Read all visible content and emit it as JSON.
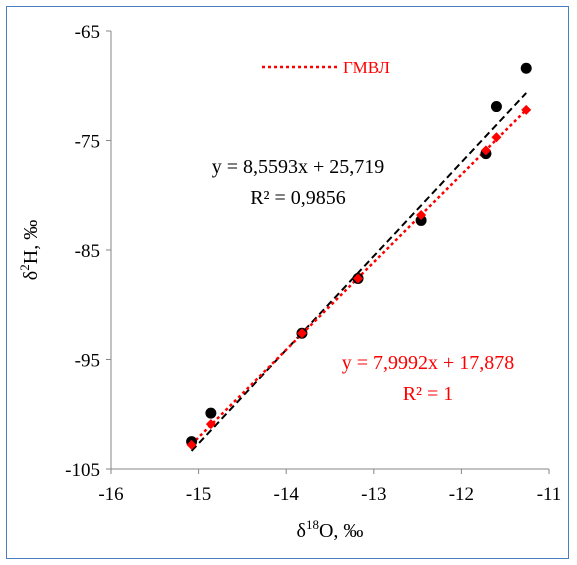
{
  "chart_data": {
    "type": "scatter",
    "xlabel": "δ18O, ‰",
    "xlabel_parts": {
      "prefix": "δ",
      "sup": "18",
      "suffix": "O, ‰"
    },
    "ylabel": "δ2H, ‰",
    "ylabel_parts": {
      "prefix": "δ",
      "sup": "2",
      "suffix": "H, ‰"
    },
    "xlim": [
      -16,
      -11
    ],
    "ylim": [
      -105,
      -65
    ],
    "xticks": [
      -16,
      -15,
      -14,
      -13,
      -12,
      -11
    ],
    "yticks": [
      -105,
      -95,
      -85,
      -75,
      -65
    ],
    "grid": false,
    "legend": {
      "position": "top-center",
      "label": "ГМВЛ"
    },
    "series": [
      {
        "marker": "circle",
        "color": "#000000",
        "x": [
          -15.08,
          -14.86,
          -13.82,
          -13.18,
          -12.46,
          -11.72,
          -11.6,
          -11.26
        ],
        "y": [
          -102.5,
          -99.9,
          -92.6,
          -87.6,
          -82.3,
          -76.2,
          -71.9,
          -68.4
        ]
      },
      {
        "name": "ГМВЛ",
        "marker": "diamond",
        "color": "#ff0000",
        "x": [
          -15.08,
          -14.86,
          -13.82,
          -13.18,
          -12.46,
          -11.72,
          -11.6,
          -11.26
        ],
        "y": [
          -102.8,
          -100.9,
          -92.6,
          -87.6,
          -81.8,
          -75.9,
          -74.7,
          -72.2
        ]
      }
    ],
    "trendlines": [
      {
        "color": "#000000",
        "slope": 8.5593,
        "intercept": 25.719,
        "x_range": [
          -15.08,
          -11.26
        ],
        "style": "dashed"
      },
      {
        "color": "#ff0000",
        "slope": 7.9992,
        "intercept": 17.878,
        "x_range": [
          -15.08,
          -11.26
        ],
        "style": "dotted"
      }
    ],
    "annotations": [
      {
        "id": "eq_black",
        "lines": [
          "y = 8,5593x + 25,719",
          "R² = 0,9856"
        ],
        "color": "#000000"
      },
      {
        "id": "eq_red",
        "lines": [
          "y = 7,9992x + 17,878",
          "R² = 1"
        ],
        "color": "#ff0000"
      }
    ]
  }
}
